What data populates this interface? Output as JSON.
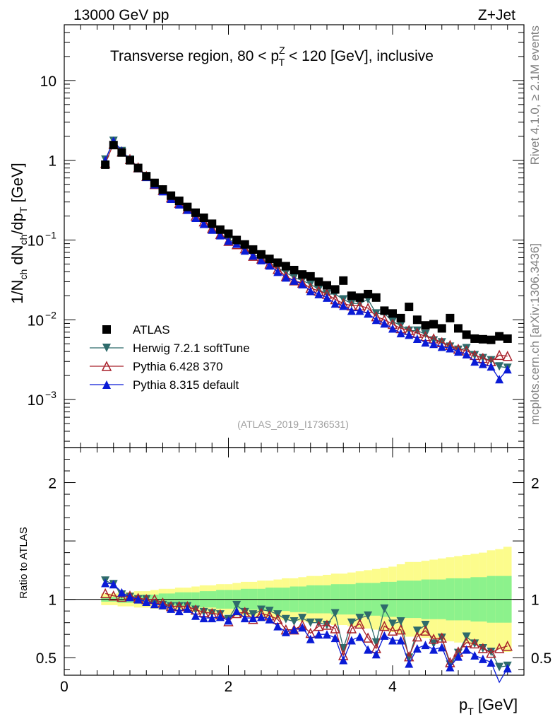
{
  "header": {
    "left": "13000 GeV pp",
    "right": "Z+Jet"
  },
  "side_labels": {
    "rivet": "Rivet 4.1.0, ≥ 2.1M events",
    "mcplots": "mcplots.cern.ch [arXiv:1306.3436]"
  },
  "analysis_id": "(ATLAS_2019_I1736531)",
  "colors": {
    "atlas": "#000000",
    "herwig": "#2e6b6b",
    "pythia6": "#a8202a",
    "pythia8": "#0a1bd6",
    "band_inner": "#8cf28c",
    "band_outer": "#fcfc8c"
  },
  "chart_data": [
    {
      "type": "scatter",
      "name": "main",
      "title_prefix": "Transverse region, 80 < p",
      "title_sup": "Z",
      "title_sub": "T",
      "title_suffix": " < 120 [GeV], inclusive",
      "ylabel": "1/N_ch dN_ch/dp_T [GeV]",
      "yscale": "log",
      "ylim": [
        0.00025,
        50
      ],
      "xlim": [
        0,
        5.6
      ],
      "y_ticks": [
        {
          "value": 10,
          "label": "10"
        },
        {
          "value": 1,
          "label": "1"
        },
        {
          "value": 0.1,
          "label": "10",
          "exp": "−1"
        },
        {
          "value": 0.01,
          "label": "10",
          "exp": "−2"
        },
        {
          "value": 0.001,
          "label": "10",
          "exp": "−3"
        }
      ],
      "x": [
        0.5,
        0.6,
        0.7,
        0.8,
        0.9,
        1.0,
        1.1,
        1.2,
        1.3,
        1.4,
        1.5,
        1.6,
        1.7,
        1.8,
        1.9,
        2.0,
        2.1,
        2.2,
        2.3,
        2.4,
        2.5,
        2.6,
        2.7,
        2.8,
        2.9,
        3.0,
        3.1,
        3.2,
        3.3,
        3.4,
        3.5,
        3.6,
        3.7,
        3.8,
        3.9,
        4.0,
        4.1,
        4.2,
        4.3,
        4.4,
        4.5,
        4.6,
        4.7,
        4.8,
        4.9,
        5.0,
        5.1,
        5.2,
        5.3,
        5.4
      ],
      "legend_position": "lower-left",
      "series": [
        {
          "name": "ATLAS",
          "marker": "square",
          "values": [
            0.88,
            1.55,
            1.25,
            1.0,
            0.8,
            0.63,
            0.52,
            0.43,
            0.36,
            0.31,
            0.26,
            0.22,
            0.19,
            0.16,
            0.135,
            0.12,
            0.1,
            0.088,
            0.076,
            0.066,
            0.058,
            0.052,
            0.047,
            0.042,
            0.037,
            0.035,
            0.03,
            0.027,
            0.024,
            0.031,
            0.02,
            0.019,
            0.021,
            0.019,
            0.013,
            0.012,
            0.0105,
            0.0145,
            0.01,
            0.0085,
            0.0088,
            0.0078,
            0.0105,
            0.0078,
            0.0065,
            0.0058,
            0.0057,
            0.0056,
            0.0062,
            0.0058
          ]
        },
        {
          "name": "Herwig 7.2.1 softTune",
          "marker": "triangle-down",
          "values": [
            1.02,
            1.75,
            1.3,
            1.02,
            0.8,
            0.63,
            0.5,
            0.41,
            0.34,
            0.29,
            0.245,
            0.2,
            0.17,
            0.14,
            0.118,
            0.1,
            0.095,
            0.078,
            0.066,
            0.06,
            0.052,
            0.045,
            0.039,
            0.034,
            0.031,
            0.028,
            0.024,
            0.021,
            0.021,
            0.018,
            0.016,
            0.016,
            0.018,
            0.012,
            0.012,
            0.0095,
            0.0085,
            0.0073,
            0.0073,
            0.0066,
            0.0055,
            0.0052,
            0.0046,
            0.0042,
            0.0044,
            0.0036,
            0.0033,
            0.0031,
            0.0026,
            0.0025
          ]
        },
        {
          "name": "Pythia 6.428 370",
          "marker": "triangle-open",
          "values": [
            0.92,
            1.6,
            1.28,
            1.03,
            0.81,
            0.63,
            0.5,
            0.42,
            0.34,
            0.29,
            0.245,
            0.2,
            0.17,
            0.14,
            0.118,
            0.097,
            0.088,
            0.078,
            0.063,
            0.058,
            0.05,
            0.043,
            0.035,
            0.031,
            0.029,
            0.025,
            0.023,
            0.021,
            0.018,
            0.016,
            0.015,
            0.015,
            0.014,
            0.011,
            0.01,
            0.0088,
            0.0078,
            0.0074,
            0.0068,
            0.0062,
            0.0058,
            0.0052,
            0.0048,
            0.0043,
            0.0041,
            0.0036,
            0.0033,
            0.003,
            0.0036,
            0.0035
          ]
        },
        {
          "name": "Pythia 8.315 default",
          "marker": "triangle-up",
          "values": [
            1.0,
            1.75,
            1.32,
            1.02,
            0.8,
            0.62,
            0.5,
            0.41,
            0.33,
            0.28,
            0.24,
            0.19,
            0.16,
            0.135,
            0.115,
            0.098,
            0.09,
            0.074,
            0.064,
            0.056,
            0.048,
            0.04,
            0.034,
            0.031,
            0.028,
            0.023,
            0.021,
            0.019,
            0.016,
            0.015,
            0.013,
            0.013,
            0.012,
            0.01,
            0.009,
            0.0078,
            0.0068,
            0.0065,
            0.0058,
            0.0052,
            0.005,
            0.0046,
            0.0044,
            0.004,
            0.0037,
            0.003,
            0.0028,
            0.0026,
            0.0018,
            0.0024
          ]
        }
      ]
    },
    {
      "type": "scatter",
      "name": "ratio",
      "ylabel": "Ratio to ATLAS",
      "xlabel": "p_T [GeV]",
      "ylim": [
        0.35,
        2.3
      ],
      "xlim": [
        0,
        5.6
      ],
      "y_ticks": [
        {
          "value": 0.5,
          "label": "0.5"
        },
        {
          "value": 1,
          "label": "1"
        },
        {
          "value": 2,
          "label": "2"
        }
      ],
      "x_ticks": [
        {
          "value": 0,
          "label": "0"
        },
        {
          "value": 2,
          "label": "2"
        },
        {
          "value": 4,
          "label": "4"
        }
      ],
      "reference_line": 1,
      "band_inner": [
        0.02,
        0.02,
        0.03,
        0.03,
        0.03,
        0.04,
        0.04,
        0.05,
        0.05,
        0.06,
        0.06,
        0.06,
        0.07,
        0.07,
        0.08,
        0.08,
        0.08,
        0.09,
        0.09,
        0.09,
        0.1,
        0.1,
        0.1,
        0.11,
        0.11,
        0.12,
        0.12,
        0.12,
        0.13,
        0.13,
        0.13,
        0.14,
        0.14,
        0.14,
        0.15,
        0.15,
        0.16,
        0.16,
        0.16,
        0.17,
        0.17,
        0.17,
        0.18,
        0.18,
        0.18,
        0.19,
        0.19,
        0.2,
        0.2,
        0.2
      ],
      "band_outer": [
        0.05,
        0.05,
        0.06,
        0.06,
        0.07,
        0.07,
        0.08,
        0.09,
        0.09,
        0.1,
        0.1,
        0.11,
        0.12,
        0.12,
        0.13,
        0.13,
        0.14,
        0.15,
        0.15,
        0.16,
        0.16,
        0.17,
        0.18,
        0.18,
        0.19,
        0.2,
        0.2,
        0.21,
        0.22,
        0.22,
        0.23,
        0.24,
        0.25,
        0.26,
        0.27,
        0.28,
        0.3,
        0.32,
        0.32,
        0.33,
        0.34,
        0.35,
        0.36,
        0.37,
        0.38,
        0.39,
        0.4,
        0.42,
        0.43,
        0.45
      ],
      "series": [
        {
          "name": "Herwig 7.2.1 softTune",
          "marker": "triangle-down",
          "values": [
            1.16,
            1.13,
            1.04,
            1.02,
            1.0,
            1.0,
            0.96,
            0.95,
            0.94,
            0.94,
            0.94,
            0.91,
            0.89,
            0.88,
            0.87,
            0.83,
            0.95,
            0.89,
            0.87,
            0.91,
            0.9,
            0.87,
            0.83,
            0.81,
            0.84,
            0.8,
            0.8,
            0.78,
            0.88,
            0.58,
            0.8,
            0.84,
            0.86,
            0.63,
            0.92,
            0.79,
            0.81,
            0.5,
            0.73,
            0.78,
            0.62,
            0.67,
            0.44,
            0.54,
            0.68,
            0.62,
            0.58,
            0.55,
            0.42,
            0.43
          ]
        },
        {
          "name": "Pythia 6.428 370",
          "marker": "triangle-open",
          "values": [
            1.05,
            1.03,
            1.02,
            1.03,
            1.01,
            1.0,
            1.0,
            0.97,
            0.94,
            0.94,
            0.94,
            0.91,
            0.89,
            0.88,
            0.87,
            0.81,
            0.88,
            0.89,
            0.83,
            0.88,
            0.86,
            0.83,
            0.74,
            0.74,
            0.78,
            0.71,
            0.77,
            0.78,
            0.75,
            0.52,
            0.75,
            0.79,
            0.67,
            0.58,
            0.77,
            0.73,
            0.74,
            0.51,
            0.68,
            0.73,
            0.66,
            0.67,
            0.46,
            0.55,
            0.63,
            0.62,
            0.58,
            0.54,
            0.58,
            0.6
          ]
        },
        {
          "name": "Pythia 8.315 default",
          "marker": "triangle-up",
          "values": [
            1.14,
            1.13,
            1.06,
            1.02,
            1.0,
            0.98,
            0.96,
            0.95,
            0.92,
            0.9,
            0.92,
            0.86,
            0.84,
            0.84,
            0.85,
            0.82,
            0.9,
            0.84,
            0.84,
            0.85,
            0.83,
            0.77,
            0.72,
            0.74,
            0.76,
            0.66,
            0.7,
            0.7,
            0.67,
            0.48,
            0.65,
            0.68,
            0.57,
            0.53,
            0.69,
            0.65,
            0.65,
            0.45,
            0.58,
            0.61,
            0.57,
            0.59,
            0.42,
            0.51,
            0.57,
            0.52,
            0.49,
            0.46,
            0.29,
            0.41
          ]
        }
      ]
    }
  ]
}
